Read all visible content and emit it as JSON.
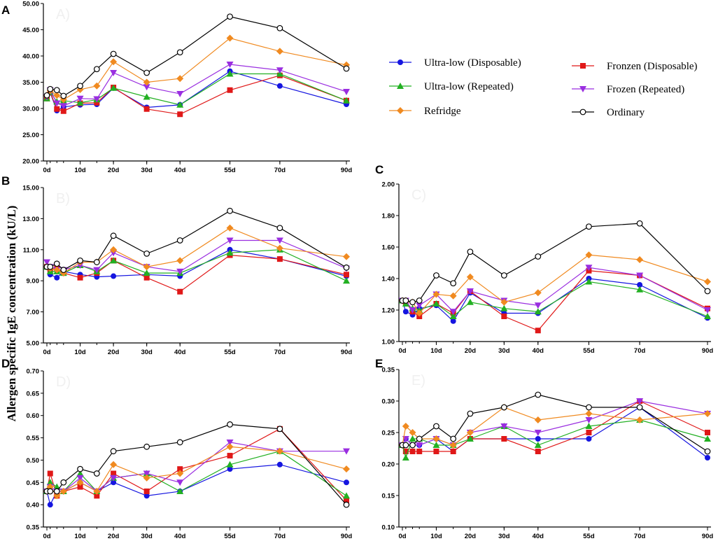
{
  "figure": {
    "ylabel": "Allergen specific IgE concentration (kU/L)"
  },
  "legend": [
    {
      "name": "Ultra-low (Disposable)",
      "color": "#1515e0",
      "marker": "circle"
    },
    {
      "name": "Fronzen (Disposable)",
      "color": "#e01818",
      "marker": "square"
    },
    {
      "name": "Ultra-low (Repeated)",
      "color": "#22b022",
      "marker": "triangle-up"
    },
    {
      "name": "Frozen (Repeated)",
      "color": "#9a2ee0",
      "marker": "triangle-down"
    },
    {
      "name": "Refridge",
      "color": "#f08a20",
      "marker": "diamond"
    },
    {
      "name": "Ordinary",
      "color": "#000000",
      "marker": "open-circle"
    }
  ],
  "chart_data": [
    {
      "panel": "A",
      "watermark": "A)",
      "type": "line",
      "x": [
        0,
        1,
        3,
        5,
        10,
        15,
        20,
        30,
        40,
        55,
        70,
        90
      ],
      "xticks": [
        {
          "v": 0,
          "label": "0d"
        },
        {
          "v": 10,
          "label": "10d"
        },
        {
          "v": 20,
          "label": "20d"
        },
        {
          "v": 30,
          "label": "30d"
        },
        {
          "v": 40,
          "label": "40d"
        },
        {
          "v": 55,
          "label": "55d"
        },
        {
          "v": 70,
          "label": "70d"
        },
        {
          "v": 90,
          "label": "90d"
        }
      ],
      "ylim": [
        20,
        50
      ],
      "yticks": [
        "20.00",
        "25.00",
        "30.00",
        "35.00",
        "40.00",
        "45.00",
        "50.00"
      ],
      "series": [
        {
          "name": "Ultra-low (Disposable)",
          "values": [
            31.9,
            33.0,
            29.6,
            30.3,
            30.7,
            30.8,
            33.9,
            30.2,
            30.7,
            37.1,
            34.3,
            30.8
          ]
        },
        {
          "name": "Fronzen (Disposable)",
          "values": [
            31.9,
            33.1,
            29.9,
            29.5,
            31.0,
            31.1,
            34.0,
            29.9,
            28.9,
            33.5,
            36.3,
            31.5
          ]
        },
        {
          "name": "Ultra-low (Repeated)",
          "values": [
            31.9,
            33.1,
            31.3,
            31.5,
            31.1,
            31.7,
            33.9,
            32.2,
            30.7,
            36.6,
            36.6,
            31.5
          ]
        },
        {
          "name": "Frozen (Repeated)",
          "values": [
            32.2,
            33.5,
            31.0,
            30.5,
            31.9,
            31.8,
            36.8,
            34.1,
            32.8,
            38.4,
            37.3,
            33.2
          ]
        },
        {
          "name": "Refridge",
          "values": [
            32.5,
            33.4,
            32.5,
            31.7,
            33.6,
            34.3,
            38.9,
            35.0,
            35.7,
            43.4,
            40.9,
            38.3
          ]
        },
        {
          "name": "Ordinary",
          "values": [
            32.5,
            33.7,
            33.5,
            32.4,
            34.3,
            37.5,
            40.4,
            36.8,
            40.7,
            47.5,
            45.3,
            37.6
          ]
        }
      ]
    },
    {
      "panel": "B",
      "watermark": "B)",
      "type": "line",
      "x": [
        0,
        1,
        3,
        5,
        10,
        15,
        20,
        30,
        40,
        55,
        70,
        90
      ],
      "xticks": [
        {
          "v": 0,
          "label": "0d"
        },
        {
          "v": 10,
          "label": "10d"
        },
        {
          "v": 20,
          "label": "20d"
        },
        {
          "v": 30,
          "label": "30d"
        },
        {
          "v": 40,
          "label": "40d"
        },
        {
          "v": 55,
          "label": "55d"
        },
        {
          "v": 70,
          "label": "70d"
        },
        {
          "v": 90,
          "label": "90d"
        }
      ],
      "ylim": [
        5,
        15
      ],
      "yticks": [
        "5.00",
        "7.00",
        "9.00",
        "11.00",
        "13.00",
        "15.00"
      ],
      "series": [
        {
          "name": "Ultra-low (Disposable)",
          "values": [
            9.9,
            9.4,
            9.2,
            9.6,
            9.4,
            9.25,
            9.3,
            9.4,
            9.3,
            11.0,
            10.4,
            9.3
          ]
        },
        {
          "name": "Fronzen (Disposable)",
          "values": [
            9.9,
            9.7,
            9.8,
            9.5,
            9.2,
            9.5,
            10.3,
            9.2,
            8.3,
            10.65,
            10.4,
            9.4
          ]
        },
        {
          "name": "Ultra-low (Repeated)",
          "values": [
            9.9,
            9.6,
            9.6,
            9.5,
            10.0,
            9.6,
            10.3,
            9.5,
            9.5,
            10.8,
            11.0,
            9.0
          ]
        },
        {
          "name": "Frozen (Repeated)",
          "values": [
            10.2,
            9.9,
            9.7,
            9.7,
            10.0,
            9.7,
            10.8,
            9.9,
            9.6,
            11.6,
            11.6,
            9.8
          ]
        },
        {
          "name": "Refridge",
          "values": [
            9.9,
            9.8,
            9.7,
            9.5,
            10.2,
            10.2,
            11.0,
            9.9,
            10.3,
            12.4,
            11.1,
            10.55
          ]
        },
        {
          "name": "Ordinary",
          "values": [
            9.9,
            9.9,
            10.1,
            9.7,
            10.3,
            10.2,
            11.9,
            10.75,
            11.6,
            13.5,
            12.4,
            9.85
          ]
        }
      ]
    },
    {
      "panel": "C",
      "watermark": "C)",
      "type": "line",
      "x": [
        0,
        1,
        3,
        5,
        10,
        15,
        20,
        30,
        40,
        55,
        70,
        90
      ],
      "xticks": [
        {
          "v": 0,
          "label": "0d"
        },
        {
          "v": 10,
          "label": "10d"
        },
        {
          "v": 20,
          "label": "20d"
        },
        {
          "v": 30,
          "label": "30d"
        },
        {
          "v": 40,
          "label": "40d"
        },
        {
          "v": 55,
          "label": "55d"
        },
        {
          "v": 70,
          "label": "70d"
        },
        {
          "v": 90,
          "label": "90d"
        }
      ],
      "ylim": [
        1.0,
        2.0
      ],
      "yticks": [
        "1.00",
        "1.20",
        "1.40",
        "1.60",
        "1.80",
        "2.00"
      ],
      "series": [
        {
          "name": "Ultra-low (Disposable)",
          "values": [
            1.26,
            1.19,
            1.17,
            1.21,
            1.23,
            1.13,
            1.31,
            1.18,
            1.18,
            1.4,
            1.36,
            1.15
          ]
        },
        {
          "name": "Fronzen (Disposable)",
          "values": [
            1.26,
            1.25,
            1.19,
            1.16,
            1.24,
            1.18,
            1.32,
            1.16,
            1.07,
            1.45,
            1.42,
            1.21
          ]
        },
        {
          "name": "Ultra-low (Repeated)",
          "values": [
            1.26,
            1.24,
            1.21,
            1.2,
            1.24,
            1.16,
            1.25,
            1.21,
            1.19,
            1.38,
            1.33,
            1.16
          ]
        },
        {
          "name": "Frozen (Repeated)",
          "values": [
            1.26,
            1.26,
            1.2,
            1.23,
            1.3,
            1.19,
            1.32,
            1.26,
            1.23,
            1.47,
            1.42,
            1.2
          ]
        },
        {
          "name": "Refridge",
          "values": [
            1.26,
            1.26,
            1.25,
            1.18,
            1.3,
            1.29,
            1.41,
            1.25,
            1.31,
            1.55,
            1.52,
            1.38
          ]
        },
        {
          "name": "Ordinary",
          "values": [
            1.26,
            1.26,
            1.25,
            1.26,
            1.42,
            1.37,
            1.57,
            1.42,
            1.54,
            1.73,
            1.75,
            1.32
          ]
        }
      ]
    },
    {
      "panel": "D",
      "watermark": "D)",
      "type": "line",
      "x": [
        0,
        1,
        3,
        5,
        10,
        15,
        20,
        30,
        40,
        55,
        70,
        90
      ],
      "xticks": [
        {
          "v": 0,
          "label": "0d"
        },
        {
          "v": 10,
          "label": "10d"
        },
        {
          "v": 20,
          "label": "20d"
        },
        {
          "v": 30,
          "label": "30d"
        },
        {
          "v": 40,
          "label": "40d"
        },
        {
          "v": 55,
          "label": "55d"
        },
        {
          "v": 70,
          "label": "70d"
        },
        {
          "v": 90,
          "label": "90d"
        }
      ],
      "ylim": [
        0.35,
        0.7
      ],
      "yticks": [
        "0.35",
        "0.40",
        "0.45",
        "0.50",
        "0.55",
        "0.60",
        "0.65",
        "0.70"
      ],
      "series": [
        {
          "name": "Ultra-low (Disposable)",
          "values": [
            0.43,
            0.4,
            0.43,
            0.43,
            0.45,
            0.43,
            0.45,
            0.42,
            0.43,
            0.48,
            0.49,
            0.45
          ]
        },
        {
          "name": "Fronzen (Disposable)",
          "values": [
            0.43,
            0.47,
            0.42,
            0.43,
            0.44,
            0.42,
            0.47,
            0.43,
            0.48,
            0.51,
            0.57,
            0.41
          ]
        },
        {
          "name": "Ultra-low (Repeated)",
          "values": [
            0.43,
            0.45,
            0.44,
            0.43,
            0.47,
            0.43,
            0.46,
            0.47,
            0.43,
            0.49,
            0.52,
            0.42
          ]
        },
        {
          "name": "Frozen (Repeated)",
          "values": [
            0.43,
            0.44,
            0.43,
            0.43,
            0.46,
            0.43,
            0.46,
            0.47,
            0.45,
            0.54,
            0.52,
            0.52
          ]
        },
        {
          "name": "Refridge",
          "values": [
            0.43,
            0.44,
            0.42,
            0.43,
            0.45,
            0.43,
            0.49,
            0.46,
            0.47,
            0.53,
            0.52,
            0.48
          ]
        },
        {
          "name": "Ordinary",
          "values": [
            0.43,
            0.43,
            0.43,
            0.45,
            0.48,
            0.47,
            0.52,
            0.53,
            0.54,
            0.58,
            0.57,
            0.4
          ]
        }
      ]
    },
    {
      "panel": "E",
      "watermark": "E)",
      "type": "line",
      "x": [
        0,
        1,
        3,
        5,
        10,
        15,
        20,
        30,
        40,
        55,
        70,
        90
      ],
      "xticks": [
        {
          "v": 0,
          "label": "0d"
        },
        {
          "v": 10,
          "label": "10d"
        },
        {
          "v": 20,
          "label": "20d"
        },
        {
          "v": 30,
          "label": "30d"
        },
        {
          "v": 40,
          "label": "40d"
        },
        {
          "v": 55,
          "label": "55d"
        },
        {
          "v": 70,
          "label": "70d"
        },
        {
          "v": 90,
          "label": "90d"
        }
      ],
      "ylim": [
        0.1,
        0.35
      ],
      "yticks": [
        "0.10",
        "0.15",
        "0.20",
        "0.25",
        "0.30",
        "0.35"
      ],
      "series": [
        {
          "name": "Ultra-low (Disposable)",
          "values": [
            0.23,
            0.24,
            0.23,
            0.23,
            0.24,
            0.22,
            0.24,
            0.24,
            0.24,
            0.24,
            0.29,
            0.21
          ]
        },
        {
          "name": "Fronzen (Disposable)",
          "values": [
            0.23,
            0.22,
            0.22,
            0.22,
            0.22,
            0.22,
            0.24,
            0.24,
            0.22,
            0.25,
            0.3,
            0.25
          ]
        },
        {
          "name": "Ultra-low (Repeated)",
          "values": [
            0.23,
            0.21,
            0.24,
            0.24,
            0.23,
            0.23,
            0.24,
            0.26,
            0.23,
            0.26,
            0.27,
            0.24
          ]
        },
        {
          "name": "Frozen (Repeated)",
          "values": [
            0.23,
            0.24,
            0.23,
            0.23,
            0.24,
            0.23,
            0.25,
            0.26,
            0.25,
            0.27,
            0.3,
            0.28
          ]
        },
        {
          "name": "Refridge",
          "values": [
            0.23,
            0.26,
            0.25,
            0.24,
            0.24,
            0.23,
            0.25,
            0.29,
            0.27,
            0.28,
            0.27,
            0.28
          ]
        },
        {
          "name": "Ordinary",
          "values": [
            0.23,
            0.23,
            0.23,
            0.24,
            0.26,
            0.24,
            0.28,
            0.29,
            0.31,
            0.29,
            0.29,
            0.22
          ]
        }
      ]
    }
  ]
}
